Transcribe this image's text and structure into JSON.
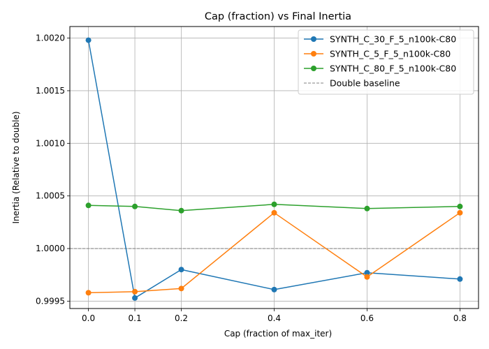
{
  "chart_data": {
    "type": "line",
    "title": "Cap (fraction) vs Final Inertia",
    "xlabel": "Cap (fraction of max_iter)",
    "ylabel": "Inertia (Relative to double)",
    "x": [
      0.0,
      0.1,
      0.2,
      0.4,
      0.6,
      0.8
    ],
    "x_ticks": [
      0.0,
      0.1,
      0.2,
      0.4,
      0.6,
      0.8
    ],
    "x_tick_labels": [
      "0.0",
      "0.1",
      "0.2",
      "0.4",
      "0.6",
      "0.8"
    ],
    "y_ticks": [
      0.9995,
      1.0,
      1.0005,
      1.001,
      1.0015,
      1.002
    ],
    "y_tick_labels": [
      "0.9995",
      "1.0000",
      "1.0005",
      "1.0010",
      "1.0015",
      "1.0020"
    ],
    "xlim": [
      -0.04,
      0.84
    ],
    "ylim": [
      0.99943,
      1.00211
    ],
    "grid": true,
    "legend_position": "top-right",
    "series": [
      {
        "name": "SYNTH_C_30_F_5_n100k-C80",
        "color": "#1f77b4",
        "values": [
          1.00198,
          0.99953,
          0.9998,
          0.99961,
          0.99977,
          0.99971
        ]
      },
      {
        "name": "SYNTH_C_5_F_5_n100k-C80",
        "color": "#ff7f0e",
        "values": [
          0.99958,
          0.99959,
          0.99962,
          1.00034,
          0.99973,
          1.00034
        ]
      },
      {
        "name": "SYNTH_C_80_F_5_n100k-C80",
        "color": "#2ca02c",
        "values": [
          1.00041,
          1.0004,
          1.00036,
          1.00042,
          1.00038,
          1.0004
        ]
      }
    ],
    "baseline": {
      "name": "Double baseline",
      "value": 1.0,
      "color": "#808080",
      "style": "dashed"
    }
  }
}
